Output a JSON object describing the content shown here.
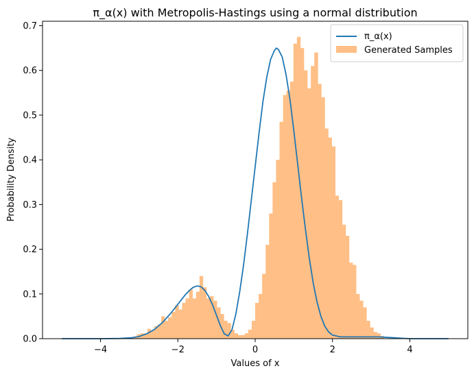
{
  "chart_data": {
    "type": "line",
    "title": "π_α(x) with Metropolis-Hastings using a normal distribution",
    "xlabel": "Values of x",
    "ylabel": "Probability Density",
    "xlim": [
      -5.5,
      5.5
    ],
    "ylim": [
      0,
      0.71
    ],
    "xticks": [
      -4,
      -2,
      0,
      2,
      4
    ],
    "yticks": [
      0.0,
      0.1,
      0.2,
      0.3,
      0.4,
      0.5,
      0.6,
      0.7
    ],
    "legend_position": "top-right",
    "colors": {
      "curve": "#1f77b4",
      "histogram": "#ffbf86"
    },
    "series": [
      {
        "name": "π_α(x)",
        "kind": "line",
        "x": [
          -5.0,
          -4.5,
          -4.0,
          -3.5,
          -3.2,
          -3.0,
          -2.8,
          -2.6,
          -2.4,
          -2.2,
          -2.0,
          -1.9,
          -1.8,
          -1.7,
          -1.6,
          -1.5,
          -1.4,
          -1.3,
          -1.2,
          -1.1,
          -1.0,
          -0.9,
          -0.8,
          -0.7,
          -0.6,
          -0.5,
          -0.4,
          -0.3,
          -0.2,
          -0.1,
          0.0,
          0.1,
          0.2,
          0.3,
          0.4,
          0.5,
          0.55,
          0.6,
          0.7,
          0.8,
          0.9,
          1.0,
          1.1,
          1.2,
          1.3,
          1.4,
          1.5,
          1.6,
          1.7,
          1.8,
          1.9,
          2.0,
          2.2,
          2.4,
          2.6,
          2.8,
          3.0,
          3.2,
          3.4,
          3.6,
          3.8,
          4.0,
          4.5,
          5.0
        ],
        "y": [
          0.0,
          0.0,
          0.0,
          0.0005,
          0.002,
          0.005,
          0.011,
          0.021,
          0.036,
          0.055,
          0.077,
          0.088,
          0.099,
          0.108,
          0.115,
          0.118,
          0.116,
          0.108,
          0.094,
          0.075,
          0.052,
          0.029,
          0.011,
          0.006,
          0.02,
          0.055,
          0.105,
          0.165,
          0.235,
          0.31,
          0.385,
          0.46,
          0.53,
          0.585,
          0.625,
          0.645,
          0.65,
          0.647,
          0.63,
          0.59,
          0.535,
          0.465,
          0.39,
          0.315,
          0.245,
          0.18,
          0.125,
          0.082,
          0.05,
          0.028,
          0.015,
          0.008,
          0.004,
          0.004,
          0.004,
          0.004,
          0.004,
          0.004,
          0.003,
          0.002,
          0.001,
          0.0,
          0.0,
          0.0
        ]
      },
      {
        "name": "Generated Samples",
        "kind": "histogram",
        "bin_width": 0.09,
        "bin_start": -3.15,
        "counts_density": [
          0.005,
          0.01,
          0.012,
          0.012,
          0.022,
          0.018,
          0.028,
          0.032,
          0.05,
          0.04,
          0.048,
          0.06,
          0.075,
          0.065,
          0.08,
          0.09,
          0.11,
          0.09,
          0.105,
          0.14,
          0.115,
          0.09,
          0.095,
          0.085,
          0.07,
          0.055,
          0.04,
          0.035,
          0.02,
          0.012,
          0.008,
          0.008,
          0.012,
          0.02,
          0.04,
          0.08,
          0.1,
          0.145,
          0.21,
          0.28,
          0.35,
          0.4,
          0.485,
          0.545,
          0.555,
          0.575,
          0.66,
          0.675,
          0.65,
          0.6,
          0.56,
          0.61,
          0.64,
          0.57,
          0.54,
          0.47,
          0.45,
          0.43,
          0.32,
          0.31,
          0.255,
          0.23,
          0.17,
          0.165,
          0.1,
          0.085,
          0.07,
          0.04,
          0.025,
          0.015,
          0.012,
          0.006
        ]
      }
    ]
  }
}
